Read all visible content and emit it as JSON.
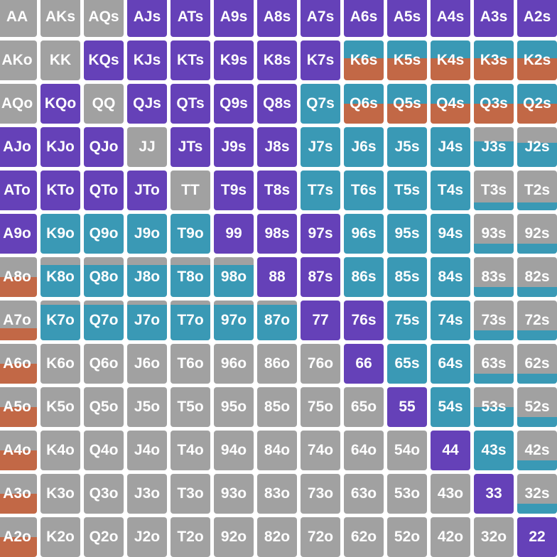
{
  "colors": {
    "raise": "#6541b8",
    "call": "#3a99b5",
    "jam": "#c26846",
    "fold": "#a1a1a1"
  },
  "grid": {
    "rows": [
      [
        "AA",
        "AKs",
        "AQs",
        "AJs",
        "ATs",
        "A9s",
        "A8s",
        "A7s",
        "A6s",
        "A5s",
        "A4s",
        "A3s",
        "A2s"
      ],
      [
        "AKo",
        "KK",
        "KQs",
        "KJs",
        "KTs",
        "K9s",
        "K8s",
        "K7s",
        "K6s",
        "K5s",
        "K4s",
        "K3s",
        "K2s"
      ],
      [
        "AQo",
        "KQo",
        "QQ",
        "QJs",
        "QTs",
        "Q9s",
        "Q8s",
        "Q7s",
        "Q6s",
        "Q5s",
        "Q4s",
        "Q3s",
        "Q2s"
      ],
      [
        "AJo",
        "KJo",
        "QJo",
        "JJ",
        "JTs",
        "J9s",
        "J8s",
        "J7s",
        "J6s",
        "J5s",
        "J4s",
        "J3s",
        "J2s"
      ],
      [
        "ATo",
        "KTo",
        "QTo",
        "JTo",
        "TT",
        "T9s",
        "T8s",
        "T7s",
        "T6s",
        "T5s",
        "T4s",
        "T3s",
        "T2s"
      ],
      [
        "A9o",
        "K9o",
        "Q9o",
        "J9o",
        "T9o",
        "99",
        "98s",
        "97s",
        "96s",
        "95s",
        "94s",
        "93s",
        "92s"
      ],
      [
        "A8o",
        "K8o",
        "Q8o",
        "J8o",
        "T8o",
        "98o",
        "88",
        "87s",
        "86s",
        "85s",
        "84s",
        "83s",
        "82s"
      ],
      [
        "A7o",
        "K7o",
        "Q7o",
        "J7o",
        "T7o",
        "97o",
        "87o",
        "77",
        "76s",
        "75s",
        "74s",
        "73s",
        "72s"
      ],
      [
        "A6o",
        "K6o",
        "Q6o",
        "J6o",
        "T6o",
        "96o",
        "86o",
        "76o",
        "66",
        "65s",
        "64s",
        "63s",
        "62s"
      ],
      [
        "A5o",
        "K5o",
        "Q5o",
        "J5o",
        "T5o",
        "95o",
        "85o",
        "75o",
        "65o",
        "55",
        "54s",
        "53s",
        "52s"
      ],
      [
        "A4o",
        "K4o",
        "Q4o",
        "J4o",
        "T4o",
        "94o",
        "84o",
        "74o",
        "64o",
        "54o",
        "44",
        "43s",
        "42s"
      ],
      [
        "A3o",
        "K3o",
        "Q3o",
        "J3o",
        "T3o",
        "93o",
        "83o",
        "73o",
        "63o",
        "53o",
        "43o",
        "33",
        "32s"
      ],
      [
        "A2o",
        "K2o",
        "Q2o",
        "J2o",
        "T2o",
        "92o",
        "82o",
        "72o",
        "62o",
        "52o",
        "42o",
        "32o",
        "22"
      ]
    ]
  },
  "hands": {
    "AA": {
      "fold": 1
    },
    "AKs": {
      "fold": 1
    },
    "AQs": {
      "fold": 1
    },
    "AJs": {
      "raise": 1
    },
    "ATs": {
      "raise": 1
    },
    "A9s": {
      "raise": 1
    },
    "A8s": {
      "raise": 1
    },
    "A7s": {
      "raise": 1
    },
    "A6s": {
      "raise": 1
    },
    "A5s": {
      "raise": 1
    },
    "A4s": {
      "raise": 1
    },
    "A3s": {
      "raise": 1
    },
    "A2s": {
      "raise": 1
    },
    "AKo": {
      "fold": 1
    },
    "KK": {
      "fold": 1
    },
    "KQs": {
      "raise": 1
    },
    "KJs": {
      "raise": 1
    },
    "KTs": {
      "raise": 1
    },
    "K9s": {
      "raise": 1
    },
    "K8s": {
      "raise": 1
    },
    "K7s": {
      "raise": 1
    },
    "K6s": {
      "call": 0.45,
      "jam": 0.55
    },
    "K5s": {
      "call": 0.45,
      "jam": 0.55
    },
    "K4s": {
      "call": 0.45,
      "jam": 0.55
    },
    "K3s": {
      "call": 0.45,
      "jam": 0.55
    },
    "K2s": {
      "call": 0.45,
      "jam": 0.55
    },
    "AQo": {
      "fold": 1
    },
    "KQo": {
      "raise": 1
    },
    "QQ": {
      "fold": 1
    },
    "QJs": {
      "raise": 1
    },
    "QTs": {
      "raise": 1
    },
    "Q9s": {
      "raise": 1
    },
    "Q8s": {
      "raise": 1
    },
    "Q7s": {
      "call": 1
    },
    "Q6s": {
      "call": 0.5,
      "jam": 0.5
    },
    "Q5s": {
      "call": 0.5,
      "jam": 0.5
    },
    "Q4s": {
      "call": 0.5,
      "jam": 0.5
    },
    "Q3s": {
      "call": 0.5,
      "jam": 0.5
    },
    "Q2s": {
      "call": 0.5,
      "jam": 0.5
    },
    "AJo": {
      "raise": 1
    },
    "KJo": {
      "raise": 1
    },
    "QJo": {
      "raise": 1
    },
    "JJ": {
      "fold": 1
    },
    "JTs": {
      "raise": 1
    },
    "J9s": {
      "raise": 1
    },
    "J8s": {
      "raise": 1
    },
    "J7s": {
      "call": 1
    },
    "J6s": {
      "call": 1
    },
    "J5s": {
      "call": 1
    },
    "J4s": {
      "call": 1
    },
    "J3s": {
      "fold": 0.35,
      "call": 0.65
    },
    "J2s": {
      "fold": 0.4,
      "call": 0.6
    },
    "ATo": {
      "raise": 1
    },
    "KTo": {
      "raise": 1
    },
    "QTo": {
      "raise": 1
    },
    "JTo": {
      "raise": 1
    },
    "TT": {
      "fold": 1
    },
    "T9s": {
      "raise": 1
    },
    "T8s": {
      "raise": 1
    },
    "T7s": {
      "call": 1
    },
    "T6s": {
      "call": 1
    },
    "T5s": {
      "call": 1
    },
    "T4s": {
      "call": 1
    },
    "T3s": {
      "fold": 0.8,
      "call": 0.2
    },
    "T2s": {
      "fold": 0.8,
      "call": 0.2
    },
    "A9o": {
      "raise": 1
    },
    "K9o": {
      "call": 1
    },
    "Q9o": {
      "call": 1
    },
    "J9o": {
      "call": 1
    },
    "T9o": {
      "call": 1
    },
    "99": {
      "raise": 1
    },
    "98s": {
      "raise": 1
    },
    "97s": {
      "raise": 1
    },
    "96s": {
      "call": 1
    },
    "95s": {
      "call": 1
    },
    "94s": {
      "call": 1
    },
    "93s": {
      "fold": 0.75,
      "call": 0.25
    },
    "92s": {
      "fold": 0.75,
      "call": 0.25
    },
    "A8o": {
      "fold": 0.5,
      "jam": 0.5
    },
    "K8o": {
      "fold": 0.2,
      "call": 0.8
    },
    "Q8o": {
      "fold": 0.2,
      "call": 0.8
    },
    "J8o": {
      "fold": 0.2,
      "call": 0.8
    },
    "T8o": {
      "fold": 0.2,
      "call": 0.8
    },
    "98o": {
      "fold": 0.2,
      "call": 0.8
    },
    "88": {
      "raise": 1
    },
    "87s": {
      "raise": 1
    },
    "86s": {
      "call": 1
    },
    "85s": {
      "call": 1
    },
    "84s": {
      "call": 1
    },
    "83s": {
      "fold": 0.75,
      "call": 0.25
    },
    "82s": {
      "fold": 0.75,
      "call": 0.25
    },
    "A7o": {
      "fold": 0.7,
      "jam": 0.3
    },
    "K7o": {
      "fold": 0.1,
      "call": 0.9
    },
    "Q7o": {
      "fold": 0.1,
      "call": 0.9
    },
    "J7o": {
      "fold": 0.1,
      "call": 0.9
    },
    "T7o": {
      "fold": 0.1,
      "call": 0.9
    },
    "97o": {
      "fold": 0.1,
      "call": 0.9
    },
    "87o": {
      "fold": 0.1,
      "call": 0.9
    },
    "77": {
      "raise": 1
    },
    "76s": {
      "raise": 1
    },
    "75s": {
      "call": 1
    },
    "74s": {
      "call": 1
    },
    "73s": {
      "fold": 0.75,
      "call": 0.25
    },
    "72s": {
      "fold": 0.75,
      "call": 0.25
    },
    "A6o": {
      "fold": 0.5,
      "jam": 0.5
    },
    "K6o": {
      "fold": 1
    },
    "Q6o": {
      "fold": 1
    },
    "J6o": {
      "fold": 1
    },
    "T6o": {
      "fold": 1
    },
    "96o": {
      "fold": 1
    },
    "86o": {
      "fold": 1
    },
    "76o": {
      "fold": 1
    },
    "66": {
      "raise": 1
    },
    "65s": {
      "call": 1
    },
    "64s": {
      "call": 1
    },
    "63s": {
      "fold": 0.75,
      "call": 0.25
    },
    "62s": {
      "fold": 0.75,
      "call": 0.25
    },
    "A5o": {
      "fold": 0.5,
      "jam": 0.5
    },
    "K5o": {
      "fold": 1
    },
    "Q5o": {
      "fold": 1
    },
    "J5o": {
      "fold": 1
    },
    "T5o": {
      "fold": 1
    },
    "95o": {
      "fold": 1
    },
    "85o": {
      "fold": 1
    },
    "75o": {
      "fold": 1
    },
    "65o": {
      "fold": 1
    },
    "55": {
      "raise": 1
    },
    "54s": {
      "call": 1
    },
    "53s": {
      "fold": 0.5,
      "call": 0.5
    },
    "52s": {
      "fold": 0.75,
      "call": 0.25
    },
    "A4o": {
      "fold": 0.5,
      "jam": 0.5
    },
    "K4o": {
      "fold": 1
    },
    "Q4o": {
      "fold": 1
    },
    "J4o": {
      "fold": 1
    },
    "T4o": {
      "fold": 1
    },
    "94o": {
      "fold": 1
    },
    "84o": {
      "fold": 1
    },
    "74o": {
      "fold": 1
    },
    "64o": {
      "fold": 1
    },
    "54o": {
      "fold": 1
    },
    "44": {
      "raise": 1
    },
    "43s": {
      "call": 1
    },
    "42s": {
      "fold": 0.75,
      "call": 0.25
    },
    "A3o": {
      "fold": 0.5,
      "jam": 0.5
    },
    "K3o": {
      "fold": 1
    },
    "Q3o": {
      "fold": 1
    },
    "J3o": {
      "fold": 1
    },
    "T3o": {
      "fold": 1
    },
    "93o": {
      "fold": 1
    },
    "83o": {
      "fold": 1
    },
    "73o": {
      "fold": 1
    },
    "63o": {
      "fold": 1
    },
    "53o": {
      "fold": 1
    },
    "43o": {
      "fold": 1
    },
    "33": {
      "raise": 1
    },
    "32s": {
      "fold": 0.75,
      "call": 0.25
    },
    "A2o": {
      "fold": 0.5,
      "jam": 0.5
    },
    "K2o": {
      "fold": 1
    },
    "Q2o": {
      "fold": 1
    },
    "J2o": {
      "fold": 1
    },
    "T2o": {
      "fold": 1
    },
    "92o": {
      "fold": 1
    },
    "82o": {
      "fold": 1
    },
    "72o": {
      "fold": 1
    },
    "62o": {
      "fold": 1
    },
    "52o": {
      "fold": 1
    },
    "42o": {
      "fold": 1
    },
    "32o": {
      "fold": 1
    },
    "22": {
      "raise": 1
    }
  }
}
